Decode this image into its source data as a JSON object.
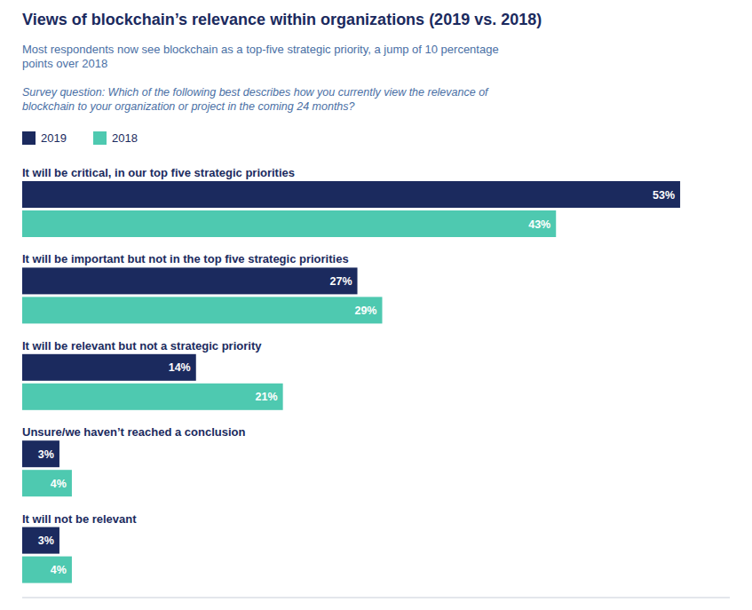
{
  "chart_data": {
    "type": "bar",
    "orientation": "horizontal",
    "title": "Views of blockchain’s relevance within organizations (2019 vs. 2018)",
    "subtitle": "Most respondents now see blockchain as a top-five strategic priority, a jump of 10 percentage\npoints over 2018",
    "annotations": [
      "Survey question: Which of the following best describes how you currently view the relevance of\nblockchain to your organization or project in the coming 24 months?"
    ],
    "categories": [
      "It will be critical, in our top five strategic priorities",
      "It will be important but not in the top five strategic priorities",
      "It will be relevant but not a strategic priority",
      "Unsure/we haven’t reached a conclusion",
      "It will not be relevant"
    ],
    "series": [
      {
        "name": "2019",
        "color": "#1b2a5e",
        "values": [
          53,
          27,
          14,
          3,
          3
        ],
        "value_labels": [
          "53%",
          "27%",
          "14%",
          "3%",
          "3%"
        ]
      },
      {
        "name": "2018",
        "color": "#4ec9b0",
        "values": [
          43,
          29,
          21,
          4,
          4
        ],
        "value_labels": [
          "43%",
          "29%",
          "21%",
          "4%",
          "4%"
        ]
      }
    ],
    "xlim": [
      0,
      57
    ],
    "xticks": [],
    "tick_labels": false,
    "data_labels": true,
    "legend": "top-left",
    "grid": false
  }
}
